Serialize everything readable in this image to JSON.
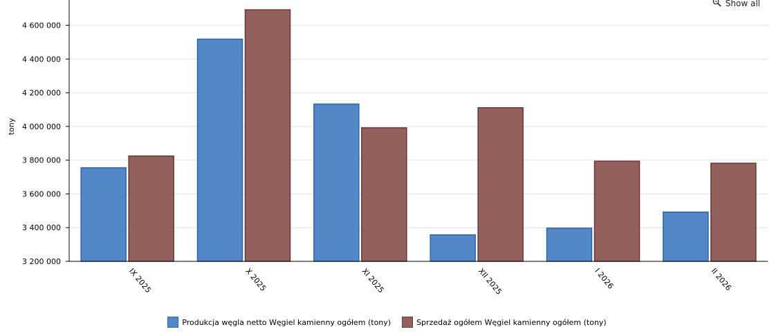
{
  "toolbar": {
    "show_all_label": "Show all",
    "show_all_icon": "zoom-icon"
  },
  "colors": {
    "series1_fill": "#5487c8",
    "series1_stroke": "#2e63a6",
    "series2_fill": "#93615d",
    "series2_stroke": "#6b3633"
  },
  "chart_data": {
    "type": "bar",
    "title": "",
    "xlabel": "",
    "ylabel": "tony",
    "categories": [
      "IX 2025",
      "X 2025",
      "XI 2025",
      "XII 2025",
      "I 2026",
      "II 2026"
    ],
    "ylim": [
      3200000,
      4750000
    ],
    "yticks": [
      3200000,
      3400000,
      3600000,
      3800000,
      4000000,
      4200000,
      4400000,
      4600000
    ],
    "ytick_labels": [
      "3 200 000",
      "3 400 000",
      "3 600 000",
      "3 800 000",
      "4 000 000",
      "4 200 000",
      "4 400 000",
      "4 600 000"
    ],
    "grid": true,
    "legend_position": "bottom",
    "series": [
      {
        "name": "Produkcja węgla netto Węgiel kamienny ogółem (tony)",
        "values": [
          3755000,
          4518000,
          4133000,
          3357000,
          3397000,
          3492000
        ]
      },
      {
        "name": "Sprzedaż ogółem Węgiel kamienny ogółem (tony)",
        "values": [
          3825000,
          4692000,
          3992000,
          4111000,
          3794000,
          3782000
        ]
      }
    ]
  }
}
